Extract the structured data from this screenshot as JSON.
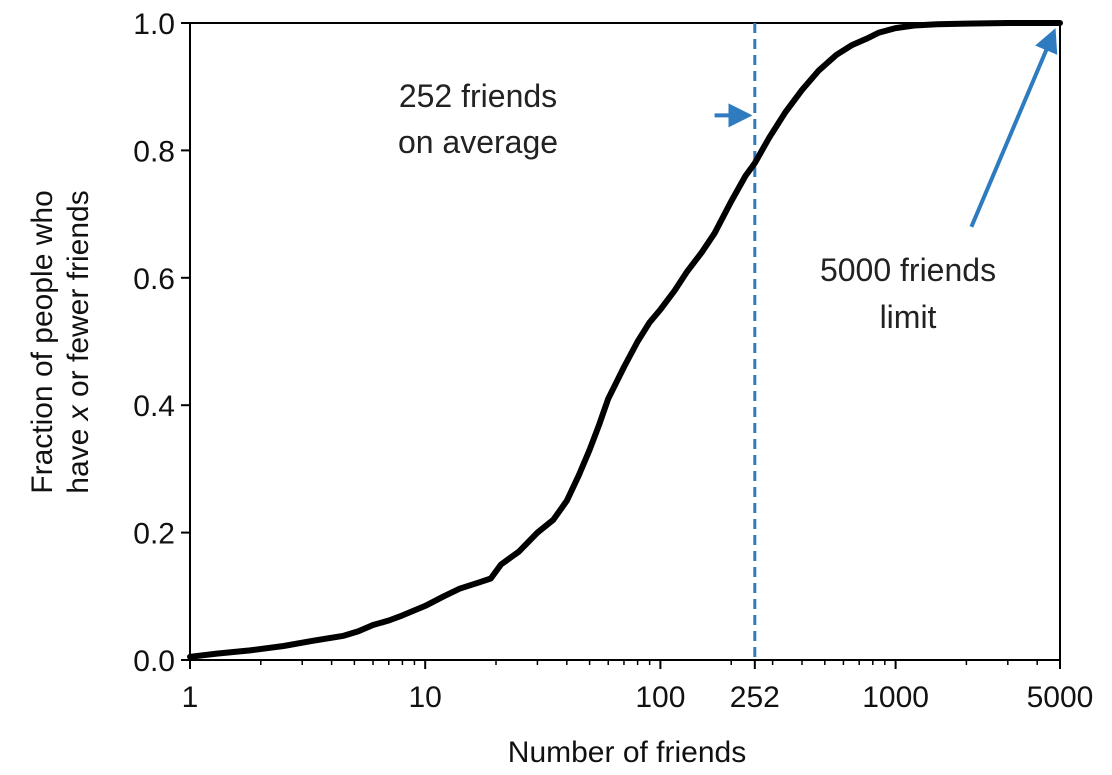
{
  "chart_data": {
    "type": "line",
    "xlabel": "Number of friends",
    "ylabel_line1": "Fraction of people who",
    "ylabel_line2_pre": "have ",
    "ylabel_line2_var": "x",
    "ylabel_line2_post": " or fewer friends",
    "x_scale": "log",
    "xlim": [
      1,
      5000
    ],
    "ylim": [
      0,
      1.0
    ],
    "grid": false,
    "x_ticks": [
      {
        "value": 1,
        "label": "1"
      },
      {
        "value": 10,
        "label": "10"
      },
      {
        "value": 100,
        "label": "100"
      },
      {
        "value": 252,
        "label": "252"
      },
      {
        "value": 1000,
        "label": "1000"
      },
      {
        "value": 5000,
        "label": "5000"
      }
    ],
    "y_ticks": [
      {
        "value": 0.0,
        "label": "0.0"
      },
      {
        "value": 0.2,
        "label": "0.2"
      },
      {
        "value": 0.4,
        "label": "0.4"
      },
      {
        "value": 0.6,
        "label": "0.6"
      },
      {
        "value": 0.8,
        "label": "0.8"
      },
      {
        "value": 1.0,
        "label": "1.0"
      }
    ],
    "series": [
      {
        "color": "#000000",
        "x": [
          1,
          1.3,
          1.8,
          2.5,
          3.3,
          4.5,
          5.2,
          6,
          7,
          8,
          10,
          12,
          14,
          17,
          19,
          21,
          25,
          30,
          35,
          40,
          45,
          50,
          55,
          60,
          70,
          80,
          90,
          100,
          115,
          130,
          150,
          170,
          200,
          230,
          252,
          290,
          340,
          400,
          470,
          560,
          650,
          750,
          850,
          1000,
          1200,
          1500,
          2000,
          3000,
          5000
        ],
        "y": [
          0.005,
          0.01,
          0.015,
          0.022,
          0.03,
          0.038,
          0.045,
          0.055,
          0.062,
          0.07,
          0.085,
          0.1,
          0.112,
          0.122,
          0.128,
          0.15,
          0.17,
          0.2,
          0.22,
          0.25,
          0.29,
          0.33,
          0.37,
          0.41,
          0.46,
          0.5,
          0.53,
          0.55,
          0.58,
          0.61,
          0.64,
          0.67,
          0.72,
          0.76,
          0.78,
          0.82,
          0.86,
          0.895,
          0.925,
          0.95,
          0.965,
          0.975,
          0.985,
          0.992,
          0.996,
          0.998,
          0.999,
          1.0,
          1.0
        ]
      }
    ],
    "reference_line": {
      "x": 252,
      "color": "#2e7bbf",
      "style": "dashed"
    },
    "annotations": [
      {
        "lines": [
          "252 friends",
          "on average"
        ],
        "arrow_from": [
          170,
          0.855
        ],
        "arrow_to": [
          235,
          0.855
        ],
        "color": "#2e7bbf"
      },
      {
        "lines": [
          "5000 friends",
          "limit"
        ],
        "arrow_from": [
          2100,
          0.68
        ],
        "arrow_to": [
          4700,
          0.985
        ],
        "color": "#2e7bbf"
      }
    ]
  }
}
